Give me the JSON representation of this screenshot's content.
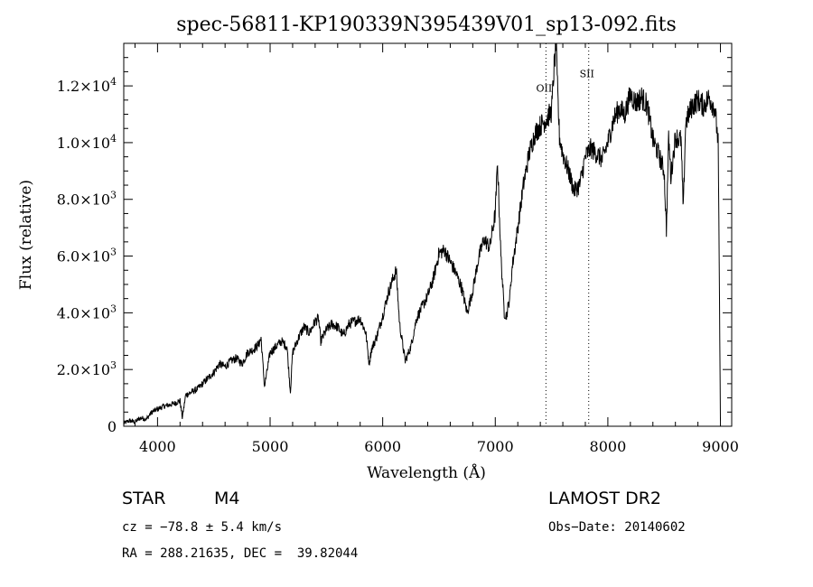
{
  "chart_data": {
    "type": "line",
    "title": "spec-56811-KP190339N395439V01_sp13-092.fits",
    "xlabel": "Wavelength (Å)",
    "ylabel": "Flux (relative)",
    "xlim": [
      3700,
      9100
    ],
    "ylim": [
      0,
      13500
    ],
    "x_ticks": [
      4000,
      5000,
      6000,
      7000,
      8000,
      9000
    ],
    "x_tick_labels": [
      "4000",
      "5000",
      "6000",
      "7000",
      "8000",
      "9000"
    ],
    "y_ticks": [
      0,
      2000,
      4000,
      6000,
      8000,
      10000,
      12000
    ],
    "y_tick_labels": [
      {
        "mant": "0",
        "exp": ""
      },
      {
        "mant": "2.0×10",
        "exp": "3"
      },
      {
        "mant": "4.0×10",
        "exp": "3"
      },
      {
        "mant": "6.0×10",
        "exp": "3"
      },
      {
        "mant": "8.0×10",
        "exp": "3"
      },
      {
        "mant": "1.0×10",
        "exp": "4"
      },
      {
        "mant": "1.2×10",
        "exp": "4"
      }
    ],
    "annotations": [
      {
        "label": "OII",
        "x": 7450,
        "label_y": 11800
      },
      {
        "label": "SII",
        "x": 7830,
        "label_y": 12300
      }
    ],
    "series": [
      {
        "x": [
          3700,
          3750,
          3800,
          3850,
          3900,
          3950,
          4000,
          4050,
          4100,
          4150,
          4200,
          4220,
          4250,
          4300,
          4350,
          4400,
          4450,
          4500,
          4550,
          4600,
          4650,
          4700,
          4750,
          4800,
          4850,
          4900,
          4920,
          4950,
          5000,
          5050,
          5100,
          5150,
          5180,
          5200,
          5250,
          5300,
          5350,
          5400,
          5430,
          5450,
          5500,
          5550,
          5600,
          5650,
          5700,
          5750,
          5800,
          5850,
          5880,
          5900,
          5950,
          6000,
          6050,
          6100,
          6120,
          6150,
          6200,
          6250,
          6300,
          6350,
          6400,
          6450,
          6500,
          6550,
          6600,
          6650,
          6700,
          6750,
          6800,
          6850,
          6900,
          6950,
          7000,
          7020,
          7050,
          7080,
          7100,
          7130,
          7150,
          7200,
          7250,
          7300,
          7350,
          7400,
          7450,
          7500,
          7520,
          7540,
          7550,
          7570,
          7600,
          7650,
          7700,
          7750,
          7800,
          7850,
          7900,
          7950,
          8000,
          8050,
          8100,
          8150,
          8200,
          8250,
          8300,
          8350,
          8400,
          8450,
          8500,
          8520,
          8540,
          8560,
          8600,
          8650,
          8670,
          8690,
          8700,
          8750,
          8800,
          8850,
          8900,
          8950,
          8980,
          9000
        ],
        "y": [
          100,
          200,
          150,
          300,
          250,
          500,
          600,
          700,
          750,
          800,
          900,
          300,
          1100,
          1200,
          1300,
          1500,
          1700,
          1900,
          2200,
          2100,
          2300,
          2400,
          2200,
          2600,
          2700,
          2900,
          3100,
          1400,
          2600,
          2800,
          3000,
          2800,
          1200,
          2600,
          3100,
          3500,
          3300,
          3700,
          3800,
          3000,
          3400,
          3600,
          3500,
          3200,
          3600,
          3700,
          3800,
          3300,
          2200,
          2700,
          3200,
          3900,
          4700,
          5300,
          5500,
          3600,
          2300,
          2800,
          3800,
          4200,
          4600,
          5200,
          6100,
          6200,
          5800,
          5400,
          4900,
          4000,
          4800,
          5900,
          6600,
          6300,
          7500,
          9300,
          6000,
          4000,
          3900,
          4600,
          5600,
          7000,
          8500,
          9600,
          10300,
          10600,
          10800,
          11100,
          12500,
          13500,
          12200,
          10200,
          9600,
          9000,
          8300,
          8500,
          9500,
          9800,
          9600,
          9400,
          10000,
          10800,
          11200,
          11000,
          11700,
          11400,
          11600,
          11300,
          10100,
          9600,
          9000,
          6900,
          10200,
          8800,
          10200,
          10100,
          7600,
          10600,
          10800,
          11300,
          11500,
          11300,
          11600,
          11200,
          10000,
          200
        ]
      }
    ]
  },
  "info": {
    "obj_class": "STAR",
    "subclass": "M4",
    "cz": "cz = −78.8 ± 5.4 km/s",
    "radec": "RA = 288.21635, DEC =  39.82044",
    "survey": "LAMOST DR2",
    "obs_date": "Obs−Date: 20140602"
  }
}
